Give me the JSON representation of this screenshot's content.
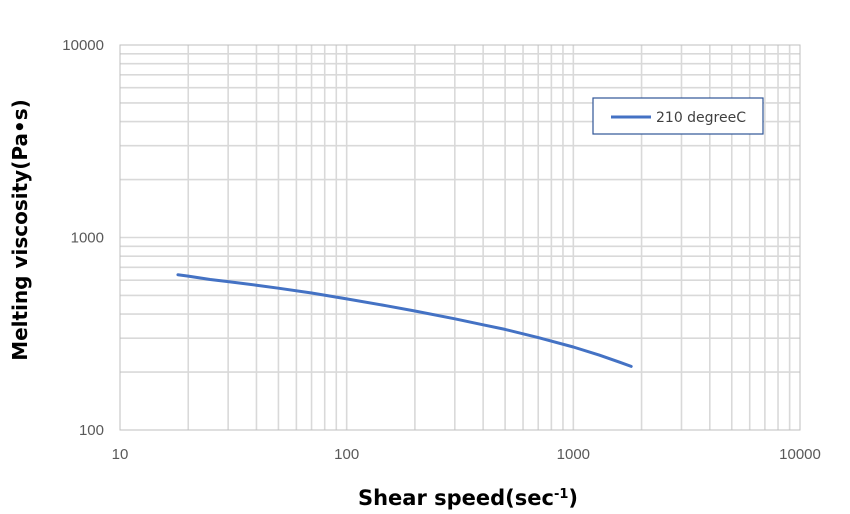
{
  "chart_data": {
    "type": "line",
    "xscale": "log",
    "yscale": "log",
    "xlim": [
      10,
      10000
    ],
    "ylim": [
      100,
      10000
    ],
    "x_ticks": [
      "10",
      "100",
      "1000",
      "10000"
    ],
    "y_ticks": [
      "100",
      "1000",
      "10000"
    ],
    "xlabel": "Shear speed(sec",
    "xlabel_sup": "-1",
    "xlabel_end": ")",
    "ylabel": "Melting viscosity(Pa•s)",
    "grid": true,
    "legend_position": "top-right",
    "series": [
      {
        "name": "210 degreeC",
        "color": "#4472C4",
        "x": [
          18,
          20,
          25,
          30,
          40,
          50,
          70,
          100,
          150,
          200,
          300,
          400,
          500,
          700,
          1000,
          1300,
          1600,
          1800
        ],
        "y": [
          640,
          630,
          605,
          590,
          565,
          545,
          515,
          480,
          442,
          415,
          378,
          352,
          333,
          302,
          270,
          245,
          225,
          214
        ]
      }
    ]
  }
}
